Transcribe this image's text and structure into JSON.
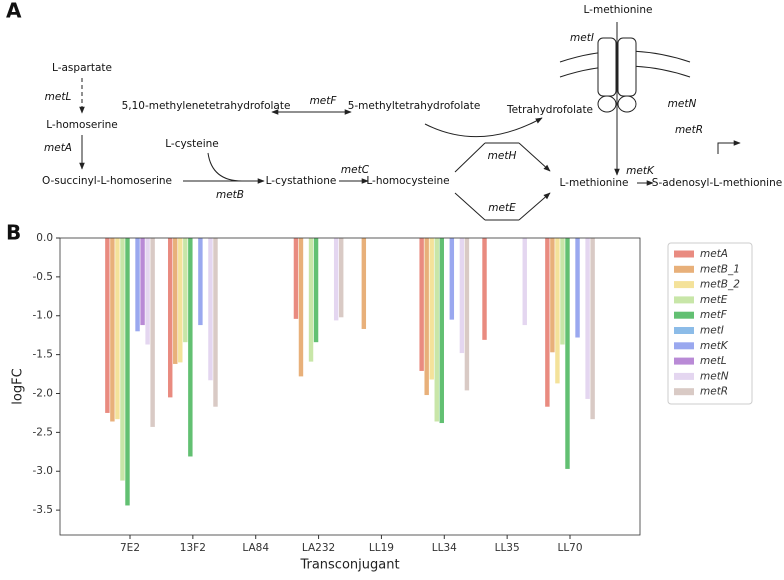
{
  "panel_labels": [
    "A",
    "B"
  ],
  "diagram": {
    "nodes": [
      "L-aspartate",
      "L-homoserine",
      "O-succinyl-L-homoserine",
      "L-cysteine",
      "L-cystathione",
      "L-homocysteine",
      "5,10-methylenetetrahydrofolate",
      "5-methyltetrahydrofolate",
      "Tetrahydrofolate",
      "L-methionine",
      "S-adenosyl-L-methionine",
      "L-methionine"
    ],
    "genes": [
      "metL",
      "metA",
      "metB",
      "metC",
      "metF",
      "metH",
      "metE",
      "metK",
      "metI",
      "metN",
      "metR"
    ]
  },
  "chart_data": {
    "type": "bar",
    "xlabel": "Transconjugant",
    "ylabel": "logFC",
    "categories": [
      "7E2",
      "13F2",
      "LA84",
      "LA232",
      "LL19",
      "LL34",
      "LL35",
      "LL70"
    ],
    "series": [
      {
        "name": "metA",
        "color": "#e98b80",
        "values": [
          -2.25,
          -2.05,
          null,
          -1.04,
          null,
          -1.71,
          -1.31,
          -2.17
        ]
      },
      {
        "name": "metB_1",
        "color": "#e8b07a",
        "values": [
          -2.36,
          -1.62,
          null,
          -1.78,
          -1.17,
          -2.02,
          null,
          -1.47
        ]
      },
      {
        "name": "metB_2",
        "color": "#f4e29a",
        "values": [
          -2.33,
          -1.6,
          null,
          null,
          null,
          -1.82,
          null,
          -1.87
        ]
      },
      {
        "name": "metE",
        "color": "#c8e6a8",
        "values": [
          -3.12,
          -1.34,
          null,
          -1.59,
          null,
          -2.36,
          null,
          -1.37
        ]
      },
      {
        "name": "metF",
        "color": "#62c072",
        "values": [
          -3.44,
          -2.81,
          null,
          -1.34,
          null,
          -2.38,
          null,
          -2.97
        ]
      },
      {
        "name": "metI",
        "color": "#8cbce8",
        "values": [
          null,
          null,
          null,
          null,
          null,
          null,
          null,
          null
        ]
      },
      {
        "name": "metK",
        "color": "#9aa8ef",
        "values": [
          -1.2,
          -1.12,
          null,
          null,
          null,
          -1.05,
          null,
          -1.28
        ]
      },
      {
        "name": "metL",
        "color": "#b98ad6",
        "values": [
          -1.12,
          null,
          null,
          null,
          null,
          null,
          null,
          null
        ]
      },
      {
        "name": "metN",
        "color": "#e4d6f0",
        "values": [
          -1.37,
          -1.83,
          null,
          -1.06,
          null,
          -1.48,
          -1.12,
          -2.07
        ]
      },
      {
        "name": "metR",
        "color": "#d9cac5",
        "values": [
          -2.43,
          -2.17,
          null,
          -1.02,
          null,
          -1.96,
          null,
          -2.33
        ]
      }
    ],
    "ylim": [
      -3.82,
      0
    ],
    "yticks": [
      {
        "value": 0,
        "label": "0.0"
      },
      -0.5,
      {
        "value": -1,
        "label": "-1.0"
      },
      -1.5,
      {
        "value": -2,
        "label": "-2.0"
      },
      -2.5,
      {
        "value": -3,
        "label": "-3.0"
      },
      -3.5
    ],
    "legend": "upper right outside"
  }
}
